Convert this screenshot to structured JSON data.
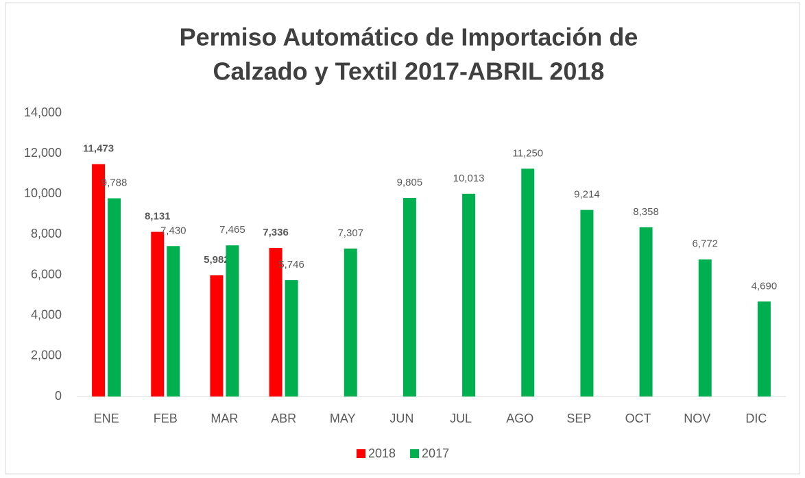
{
  "chart_data": {
    "type": "bar",
    "title": [
      "Permiso Automático de Importación de",
      "Calzado y Textil  2017-ABRIL 2018"
    ],
    "categories": [
      "ENE",
      "FEB",
      "MAR",
      "ABR",
      "MAY",
      "JUN",
      "JUL",
      "AGO",
      "SEP",
      "OCT",
      "NOV",
      "DIC"
    ],
    "series": [
      {
        "name": "2018",
        "color": "#ff0000",
        "values": [
          11473,
          8131,
          5982,
          7336,
          null,
          null,
          null,
          null,
          null,
          null,
          null,
          null
        ],
        "value_labels": [
          "11,473",
          "8,131",
          "5,982",
          "7,336",
          null,
          null,
          null,
          null,
          null,
          null,
          null,
          null
        ]
      },
      {
        "name": "2017",
        "color": "#00b050",
        "values": [
          9788,
          7430,
          7465,
          5746,
          7307,
          9805,
          10013,
          11250,
          9214,
          8358,
          6772,
          4690
        ],
        "value_labels": [
          "9,788",
          "7,430",
          "7,465",
          "5,746",
          "7,307",
          "9,805",
          "10,013",
          "11,250",
          "9,214",
          "8,358",
          "6,772",
          "4,690"
        ]
      }
    ],
    "ylim": [
      0,
      14000
    ],
    "yticks": [
      0,
      {
        "value": 2000,
        "label": "2,000"
      },
      {
        "value": 4000,
        "label": "4,000"
      },
      {
        "value": 6000,
        "label": "6,000"
      },
      {
        "value": 8000,
        "label": "8,000"
      },
      {
        "value": 10000,
        "label": "10,000"
      },
      {
        "value": 12000,
        "label": "12,000"
      },
      {
        "value": 14000,
        "label": "14,000"
      }
    ],
    "legend": "bottom"
  }
}
